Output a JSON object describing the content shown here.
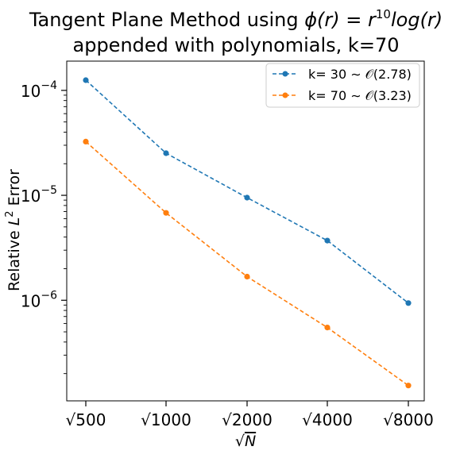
{
  "chart_data": {
    "type": "line",
    "title_line1_prefix": "Tangent Plane Method using ",
    "title_line1_math": "ϕ(r) = r",
    "title_line1_exp": "10",
    "title_line1_suffix": "log(r)",
    "title_line2": "appended with polynomials, k=70",
    "xlabel_radical": "√",
    "xlabel_var": "N",
    "ylabel_prefix": "Relative ",
    "ylabel_var": "L",
    "ylabel_exp": "2",
    "ylabel_suffix": " Error",
    "x_scale": "log",
    "y_scale": "log",
    "categories": [
      "√500",
      "√1000",
      "√2000",
      "√4000",
      "√8000"
    ],
    "x": [
      500,
      1000,
      2000,
      4000,
      8000
    ],
    "ylim": [
      1.1e-07,
      0.00019
    ],
    "y_ticks": [
      {
        "value": 0.0001,
        "base": "10",
        "exp": "−4"
      },
      {
        "value": 1e-05,
        "base": "10",
        "exp": "−5"
      },
      {
        "value": 1e-06,
        "base": "10",
        "exp": "−6"
      }
    ],
    "grid": false,
    "legend_position": "top-right",
    "series": [
      {
        "name": "k= 30 ∼ 𝒪(2.78)",
        "color": "#1f77b4",
        "linestyle": "dashed",
        "marker": "circle",
        "values": [
          0.000125,
          2.52e-05,
          9.5e-06,
          3.7e-06,
          9.4e-07
        ]
      },
      {
        "name": "k= 70 ∼ 𝒪(3.23)",
        "color": "#ff7f0e",
        "linestyle": "dashed",
        "marker": "circle",
        "values": [
          3.25e-05,
          6.8e-06,
          1.68e-06,
          5.5e-07,
          1.54e-07
        ]
      }
    ]
  }
}
